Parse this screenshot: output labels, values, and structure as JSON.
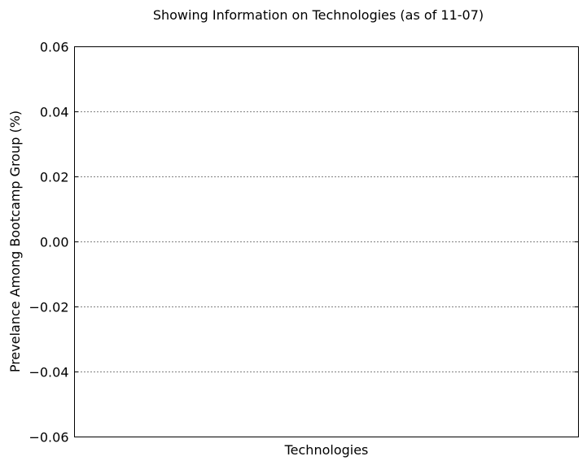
{
  "chart_data": {
    "type": "bar",
    "title": "Showing Information on Technologies (as of 11-07)",
    "xlabel": "Technologies",
    "ylabel": "Prevelance Among Bootcamp Group (%)",
    "ylim": [
      -0.06,
      0.06
    ],
    "yticks": [
      0.06,
      0.04,
      0.02,
      0.0,
      -0.02,
      -0.04,
      -0.06
    ],
    "ytick_labels": [
      "0.06",
      "0.04",
      "0.02",
      "0.00",
      "−0.02",
      "−0.04",
      "−0.06"
    ],
    "categories": [],
    "values": [],
    "grid": "horizontal dotted"
  }
}
